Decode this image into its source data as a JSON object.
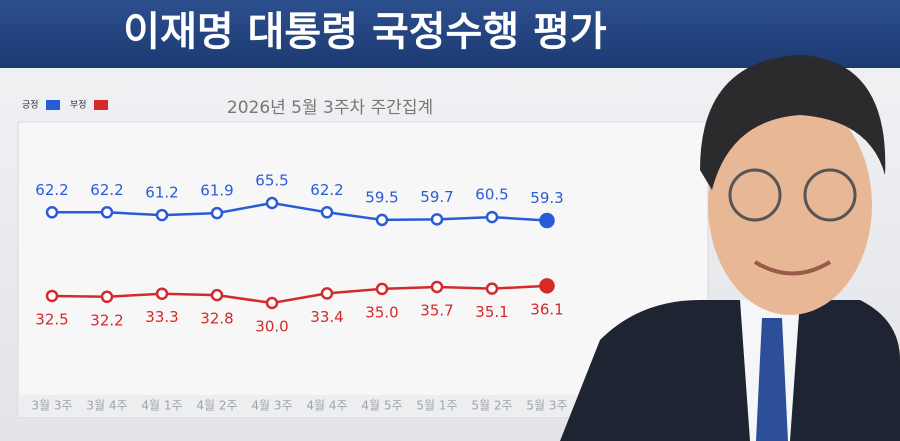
{
  "chart_data": {
    "type": "line",
    "title": "이재명 대통령 국정수행 평가",
    "subtitle": "2026년 5월 3주차 주간집계",
    "categories": [
      "3월 3주",
      "3월 4주",
      "4월 1주",
      "4월 2주",
      "4월 3주",
      "4월 4주",
      "4월 5주",
      "5월 1주",
      "5월 2주",
      "5월 3주"
    ],
    "series": [
      {
        "name": "긍정",
        "color": "#2a5bd7",
        "values": [
          62.2,
          62.2,
          61.2,
          61.9,
          65.5,
          62.2,
          59.5,
          59.7,
          60.5,
          59.3
        ],
        "value_labels": [
          "62.2",
          "62.2",
          "61.2",
          "61.9",
          "65.5",
          "62.2",
          "59.5",
          "59.7",
          "60.5",
          "59.3"
        ]
      },
      {
        "name": "부정",
        "color": "#d42a2a",
        "values": [
          32.5,
          32.2,
          33.3,
          32.8,
          30.0,
          33.4,
          35.0,
          35.7,
          35.1,
          36.1
        ],
        "value_labels": [
          "32.5",
          "32.2",
          "33.3",
          "32.8",
          "30.0",
          "33.4",
          "35.0",
          "35.7",
          "35.1",
          "36.1"
        ]
      }
    ]
  }
}
